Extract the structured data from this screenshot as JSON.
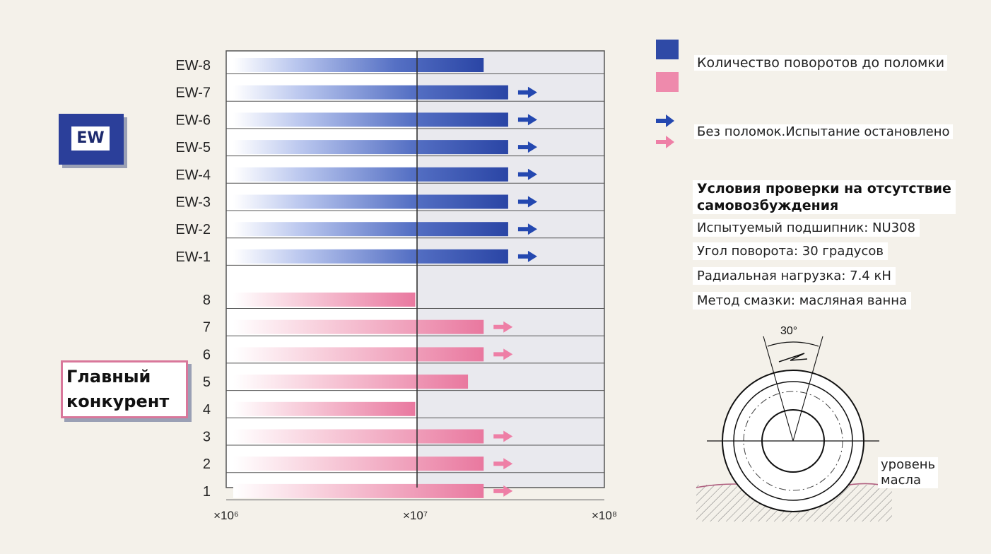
{
  "chart_data": {
    "type": "bar",
    "orientation": "horizontal",
    "x_scale": "log",
    "xlim": [
      1000000,
      100000000
    ],
    "x_tick_labels": [
      "×10⁶",
      "×10⁷",
      "×10⁸"
    ],
    "x_tick_values": [
      1000000,
      10000000,
      100000000
    ],
    "grid": false,
    "groups": [
      {
        "name": "EW",
        "color": "#2c48a8",
        "categories": [
          "EW-8",
          "EW-7",
          "EW-6",
          "EW-5",
          "EW-4",
          "EW-3",
          "EW-2",
          "EW-1"
        ],
        "values": [
          23000000,
          31000000,
          31000000,
          31000000,
          31000000,
          31000000,
          31000000,
          31000000
        ],
        "stopped": [
          false,
          true,
          true,
          true,
          true,
          true,
          true,
          true
        ]
      },
      {
        "name": "Главный конкурент",
        "color": "#e9789f",
        "categories": [
          "8",
          "7",
          "6",
          "5",
          "4",
          "3",
          "2",
          "1"
        ],
        "values": [
          10000000,
          23000000,
          23000000,
          19000000,
          10000000,
          23000000,
          23000000,
          23000000
        ],
        "stopped": [
          false,
          true,
          true,
          false,
          false,
          true,
          true,
          true
        ]
      }
    ]
  },
  "badges": {
    "ew": "EW",
    "competitor_line1": "Главный",
    "competitor_line2": "конкурент"
  },
  "legend": {
    "cycles_label": "Количество поворотов до поломки",
    "stopped_label": "Без поломок.Испытание остановлено"
  },
  "conditions": {
    "title_line1": "Условия проверки на отсутствие",
    "title_line2": "самовозбуждения",
    "items": [
      "Испытуемый подшипник: NU308",
      "Угол поворота: 30 градусов",
      "Радиальная нагрузка: 7.4 кН",
      "Метод смазки: масляная ванна"
    ]
  },
  "diagram": {
    "angle_label": "30°",
    "oil_line1": "уровень",
    "oil_line2": "масла"
  }
}
